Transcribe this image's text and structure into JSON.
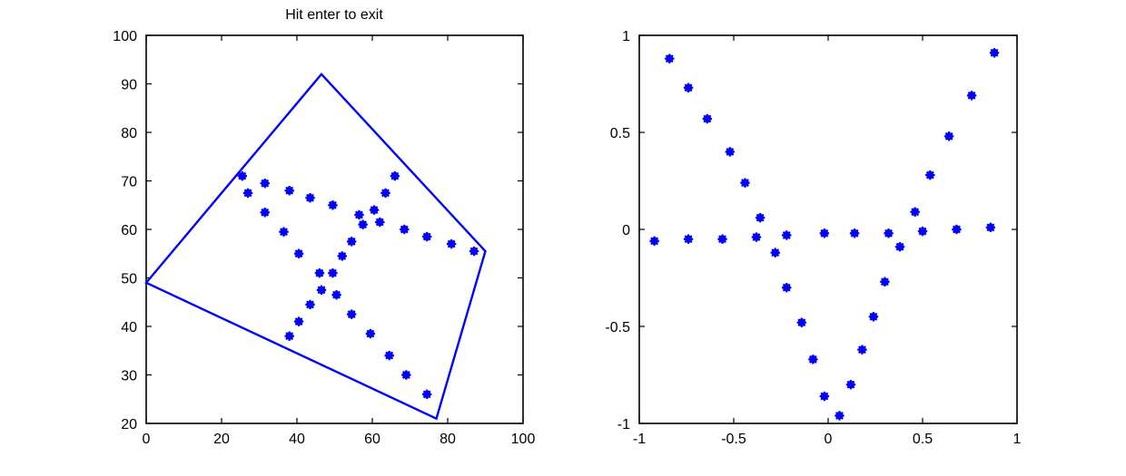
{
  "colors": {
    "marker": "#0000ff",
    "axis": "#000000",
    "background": "#ffffff"
  },
  "chart_data": [
    {
      "type": "scatter",
      "title": "Hit enter to exit",
      "xlabel": "",
      "ylabel": "",
      "xlim": [
        0,
        100
      ],
      "ylim": [
        20,
        100
      ],
      "xticks": [
        0,
        20,
        40,
        60,
        80,
        100
      ],
      "yticks": [
        20,
        30,
        40,
        50,
        60,
        70,
        80,
        90,
        100
      ],
      "grid": false,
      "polygon": {
        "name": "bounding-quadrilateral",
        "vertices": [
          [
            0,
            49
          ],
          [
            46.5,
            92
          ],
          [
            90,
            55.5
          ],
          [
            77,
            21
          ]
        ]
      },
      "points": [
        [
          25.5,
          71
        ],
        [
          27,
          67.5
        ],
        [
          31.5,
          69.5
        ],
        [
          31.5,
          63.5
        ],
        [
          36.5,
          59.5
        ],
        [
          38,
          68
        ],
        [
          38,
          38
        ],
        [
          40.5,
          55
        ],
        [
          40.5,
          41
        ],
        [
          43.5,
          66.5
        ],
        [
          43.5,
          44.5
        ],
        [
          46,
          51
        ],
        [
          46.5,
          47.5
        ],
        [
          49.5,
          51
        ],
        [
          49.5,
          65
        ],
        [
          50.5,
          46.5
        ],
        [
          52,
          54.5
        ],
        [
          54.5,
          57.5
        ],
        [
          54.5,
          42.5
        ],
        [
          56.5,
          63
        ],
        [
          57.5,
          61
        ],
        [
          59.5,
          38.5
        ],
        [
          60.5,
          64
        ],
        [
          62,
          61.5
        ],
        [
          63.5,
          67.5
        ],
        [
          64.5,
          34
        ],
        [
          66,
          71
        ],
        [
          68.5,
          60
        ],
        [
          69,
          30
        ],
        [
          74.5,
          58.5
        ],
        [
          74.5,
          26
        ],
        [
          81,
          57
        ],
        [
          87,
          55.5
        ]
      ]
    },
    {
      "type": "scatter",
      "title": "",
      "xlabel": "",
      "ylabel": "",
      "xlim": [
        -1,
        1
      ],
      "ylim": [
        -1,
        1
      ],
      "xticks": [
        -1,
        -0.5,
        0,
        0.5,
        1
      ],
      "yticks": [
        -1,
        -0.5,
        0,
        0.5,
        1
      ],
      "grid": false,
      "points": [
        [
          -0.92,
          -0.06
        ],
        [
          -0.84,
          0.88
        ],
        [
          -0.74,
          0.73
        ],
        [
          -0.74,
          -0.05
        ],
        [
          -0.64,
          0.57
        ],
        [
          -0.56,
          -0.05
        ],
        [
          -0.52,
          0.4
        ],
        [
          -0.44,
          0.24
        ],
        [
          -0.38,
          -0.04
        ],
        [
          -0.36,
          0.06
        ],
        [
          -0.28,
          -0.12
        ],
        [
          -0.22,
          -0.03
        ],
        [
          -0.22,
          -0.3
        ],
        [
          -0.14,
          -0.48
        ],
        [
          -0.08,
          -0.67
        ],
        [
          -0.02,
          -0.02
        ],
        [
          -0.02,
          -0.86
        ],
        [
          0.06,
          -0.96
        ],
        [
          0.12,
          -0.8
        ],
        [
          0.14,
          -0.02
        ],
        [
          0.18,
          -0.62
        ],
        [
          0.24,
          -0.45
        ],
        [
          0.3,
          -0.27
        ],
        [
          0.32,
          -0.02
        ],
        [
          0.38,
          -0.09
        ],
        [
          0.46,
          0.09
        ],
        [
          0.5,
          -0.01
        ],
        [
          0.54,
          0.28
        ],
        [
          0.64,
          0.48
        ],
        [
          0.68,
          0.0
        ],
        [
          0.76,
          0.69
        ],
        [
          0.86,
          0.01
        ],
        [
          0.88,
          0.91
        ]
      ]
    }
  ]
}
